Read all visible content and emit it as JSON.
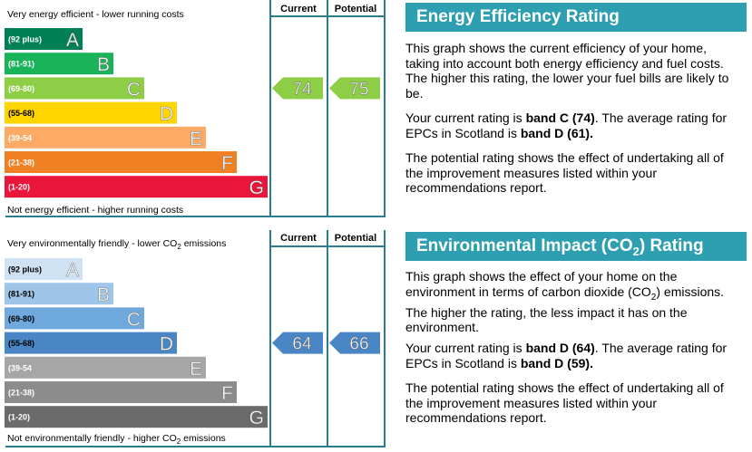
{
  "energy": {
    "top_caption": "Very energy efficient - lower running costs",
    "bottom_caption": "Not energy efficient - higher running costs",
    "current_header": "Current",
    "potential_header": "Potential",
    "heading": "Energy Efficiency Rating",
    "para1": "This graph shows the current efficiency of your home, taking into account both energy efficiency and fuel costs. The higher this rating, the lower your fuel bills are likely to be.",
    "para2_prefix": "Your current rating is ",
    "para2_bold1": "band C (74)",
    "para2_mid": ". The average rating for EPCs in Scotland is ",
    "para2_bold2": "band D (61).",
    "para3": "The potential rating shows the effect of undertaking all of the improvement measures listed within your recommendations report."
  },
  "environment": {
    "top_caption_a": "Very environmentally friendly - lower CO",
    "top_caption_sub": "2",
    "top_caption_b": " emissions",
    "bottom_caption_a": "Not environmentally friendly - higher CO",
    "bottom_caption_sub": "2",
    "bottom_caption_b": " emissions",
    "current_header": "Current",
    "potential_header": "Potential",
    "heading_a": "Environmental Impact (CO",
    "heading_sub": "2",
    "heading_b": ") Rating",
    "para1_a": "This graph shows the effect of your home on the environment in terms of carbon dioxide (CO",
    "para1_sub": "2",
    "para1_b": ") emissions. The higher the rating, the less impact it has on the environment.",
    "para2_prefix": "Your current rating is ",
    "para2_bold1": "band D (64)",
    "para2_mid": ". The average rating for EPCs in Scotland is ",
    "para2_bold2": "band D (59).",
    "para3": "The potential rating shows the effect of undertaking all of the improvement measures listed within your recommendations report."
  },
  "chart_data": [
    {
      "type": "bar",
      "title": "Energy Efficiency Rating",
      "categories": [
        "(92 plus)",
        "(81-91)",
        "(69-80)",
        "(55-68)",
        "(39-54",
        "(21-38)",
        "(1-20)"
      ],
      "bands": [
        "A",
        "B",
        "C",
        "D",
        "E",
        "F",
        "G"
      ],
      "colors": [
        "#008054",
        "#19b459",
        "#8dce46",
        "#ffd500",
        "#fcaa65",
        "#ef8023",
        "#e9153b"
      ],
      "current": {
        "value": 74,
        "band": "C",
        "color": "#8dce46"
      },
      "potential": {
        "value": 75,
        "band": "C",
        "color": "#8dce46"
      }
    },
    {
      "type": "bar",
      "title": "Environmental Impact (CO2) Rating",
      "categories": [
        "(92 plus)",
        "(81-91)",
        "(69-80)",
        "(55-68)",
        "(39-54",
        "(21-38)",
        "(1-20)"
      ],
      "bands": [
        "A",
        "B",
        "C",
        "D",
        "E",
        "F",
        "G"
      ],
      "colors": [
        "#cfe2f3",
        "#9fc5e8",
        "#6fa8dc",
        "#4a86c5",
        "#a6a6a6",
        "#8c8c8c",
        "#6b6b6b"
      ],
      "current": {
        "value": 64,
        "band": "D",
        "color": "#4a86c5"
      },
      "potential": {
        "value": 66,
        "band": "D",
        "color": "#4a86c5"
      }
    }
  ]
}
